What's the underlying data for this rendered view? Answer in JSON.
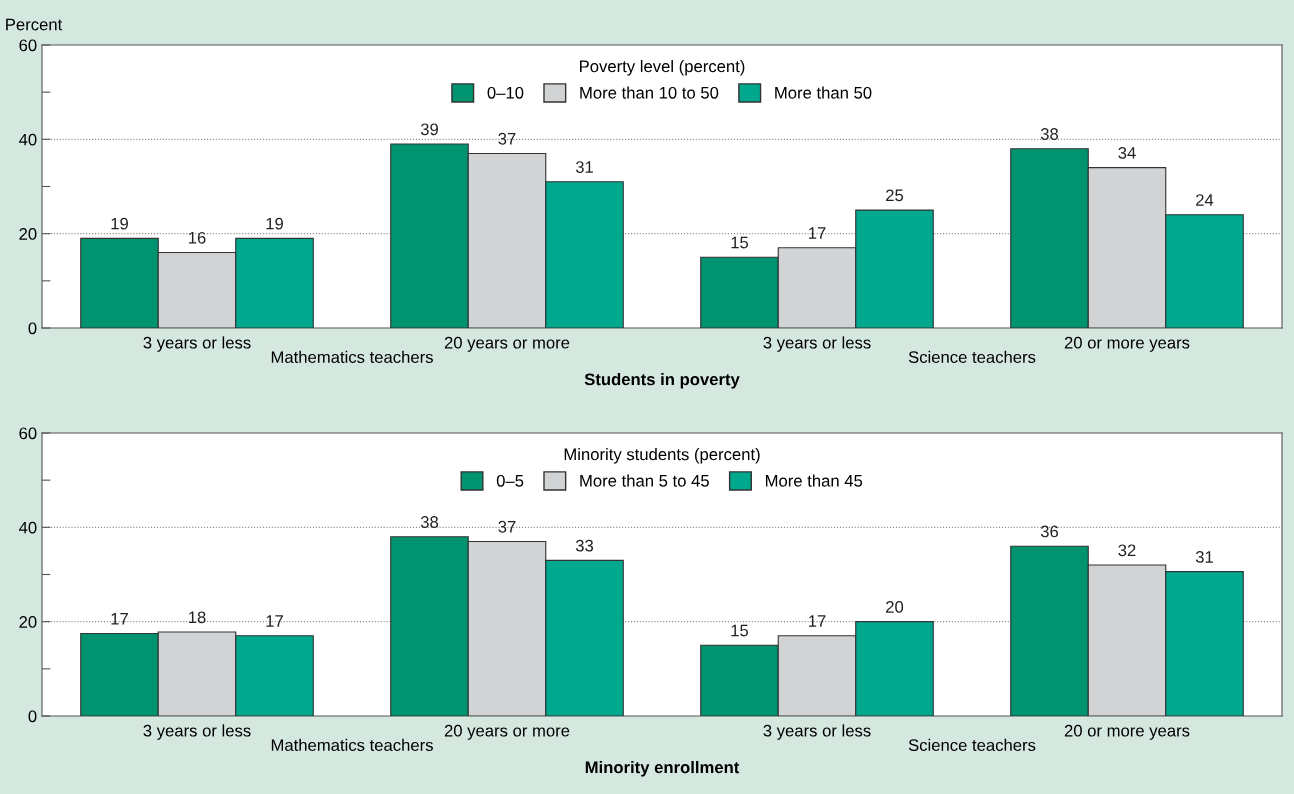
{
  "chart_data": [
    {
      "type": "bar",
      "title": "Students in poverty",
      "ylabel": "Percent",
      "legend_title": "Poverty level (percent)",
      "legend": "top",
      "categories": [
        "3 years or less",
        "20 years or more",
        "3 years or less",
        "20 or more years"
      ],
      "series": [
        {
          "name": "0–10",
          "color": "#00936f",
          "values": [
            19,
            39,
            15,
            38
          ]
        },
        {
          "name": "More than 10 to 50",
          "color": "#d1d3d4",
          "values": [
            16,
            37,
            17,
            34
          ]
        },
        {
          "name": "More than 50",
          "color": "#00a88e",
          "values": [
            19,
            31,
            25,
            24
          ]
        }
      ],
      "data_labels": true,
      "ylim": [
        0,
        60
      ],
      "yticks": [
        0,
        {
          "value": 10,
          "label": null
        },
        20,
        {
          "value": 30,
          "label": null
        },
        40,
        {
          "value": 50,
          "label": null
        },
        60
      ],
      "ref_lines": [
        {
          "axis": "y",
          "value": 20,
          "color": "#8c8c8c",
          "line_style": "dotted"
        },
        {
          "axis": "y",
          "value": 40,
          "color": "#8c8c8c",
          "line_style": "dotted"
        }
      ],
      "annotations": [
        "Mathematics teachers",
        "Science teachers"
      ]
    },
    {
      "type": "bar",
      "title": "Minority enrollment",
      "legend_title": "Minority students (percent)",
      "legend": "top",
      "categories": [
        "3 years or less",
        "20 years or more",
        "3 years or less",
        "20 or more years"
      ],
      "series": [
        {
          "name": "0–5",
          "color": "#00936f",
          "values": [
            17.5,
            38,
            15,
            36
          ],
          "value_labels": [
            "17",
            "38",
            "15",
            "36"
          ]
        },
        {
          "name": "More than 5 to 45",
          "color": "#d1d3d4",
          "values": [
            17.8,
            37,
            17,
            32
          ],
          "value_labels": [
            "18",
            "37",
            "17",
            "32"
          ]
        },
        {
          "name": "More than 45",
          "color": "#00a88e",
          "values": [
            17,
            33,
            20,
            30.6
          ],
          "value_labels": [
            "17",
            "33",
            "20",
            "31"
          ]
        }
      ],
      "ylim": [
        0,
        60
      ],
      "yticks": [
        0,
        {
          "value": 10,
          "label": null
        },
        20,
        {
          "value": 30,
          "label": null
        },
        40,
        {
          "value": 50,
          "label": null
        },
        60
      ],
      "ref_lines": [
        {
          "axis": "y",
          "value": 20,
          "color": "#8c8c8c",
          "line_style": "dotted"
        },
        {
          "axis": "y",
          "value": 40,
          "color": "#8c8c8c",
          "line_style": "dotted"
        }
      ],
      "annotations": [
        "Mathematics teachers",
        "Science teachers"
      ]
    }
  ]
}
